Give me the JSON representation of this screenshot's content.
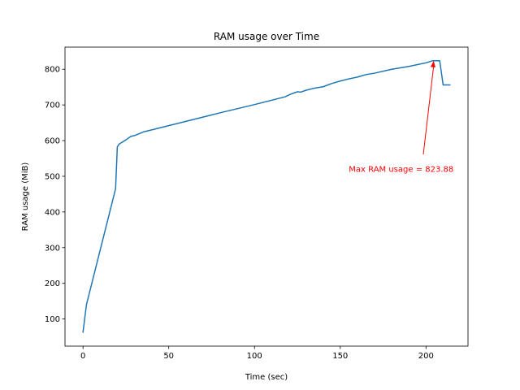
{
  "chart_data": {
    "type": "line",
    "title": "RAM usage over Time",
    "xlabel": "Time (sec)",
    "ylabel": "RAM usage (MiB)",
    "xlim": [
      -10.5,
      224.5
    ],
    "ylim": [
      24,
      862
    ],
    "xticks": [
      0,
      50,
      100,
      150,
      200
    ],
    "yticks": [
      100,
      200,
      300,
      400,
      500,
      600,
      700,
      800
    ],
    "grid": false,
    "series": [
      {
        "color": "#1f77b4",
        "x": [
          0,
          2,
          19,
          20,
          21,
          22,
          25,
          28,
          30,
          32,
          35,
          40,
          50,
          60,
          80,
          100,
          118,
          121,
          124,
          125,
          127,
          130,
          135,
          140,
          145,
          150,
          155,
          160,
          165,
          170,
          180,
          190,
          195,
          200,
          204,
          208,
          210,
          214
        ],
        "y": [
          63,
          140,
          465,
          582,
          590,
          593,
          602,
          612,
          614,
          618,
          624,
          630,
          642,
          654,
          678,
          701,
          723,
          730,
          735,
          737,
          736,
          741,
          747,
          751,
          760,
          767,
          773,
          778,
          785,
          789,
          800,
          808,
          813,
          818,
          824,
          824,
          756,
          756
        ]
      }
    ],
    "annotation": {
      "text": "Max RAM usage = 823.88",
      "color": "#ff0000",
      "point": [
        204.5,
        823.88
      ],
      "text_pos": [
        155,
        521
      ]
    }
  }
}
